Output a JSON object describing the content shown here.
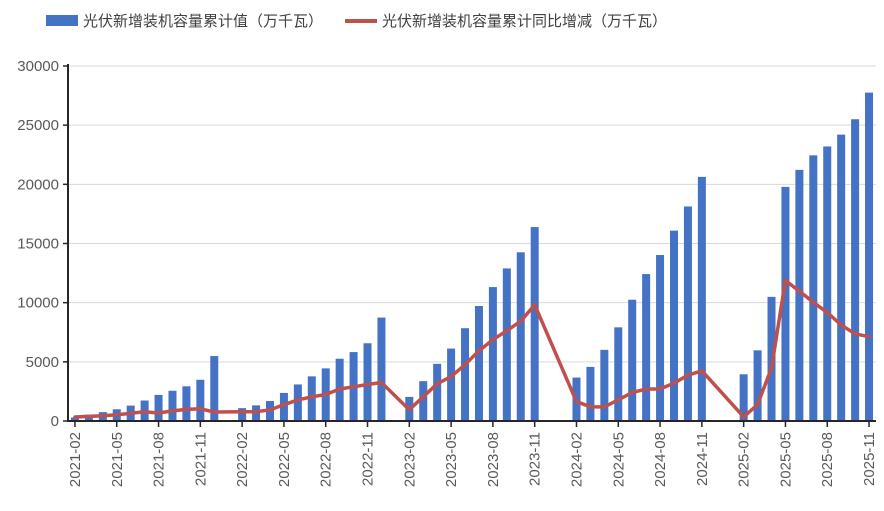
{
  "legend": {
    "items": [
      {
        "label": "光伏新增装机容量累计值（万千瓦）",
        "marker": "bar-swatch",
        "color": "#4472C4"
      },
      {
        "label": "光伏新增装机容量累计同比增减（万千瓦）",
        "marker": "line-swatch",
        "color": "#C0504D"
      }
    ]
  },
  "colors": {
    "bar": "#4472C4",
    "line": "#C0504D",
    "grid": "#D9D9D9",
    "axis": "#262626",
    "tick_label": "#595959"
  },
  "y_axis": {
    "tick_labels": [
      "0",
      "5000",
      "10000",
      "15000",
      "20000",
      "25000",
      "30000"
    ]
  },
  "x_axis": {
    "tick_labels": [
      "2021-02",
      "2021-05",
      "2021-08",
      "2021-11",
      "2022-02",
      "2022-05",
      "2022-08",
      "2022-11",
      "2023-02",
      "2023-05",
      "2023-08",
      "2023-11",
      "2024-02",
      "2024-05",
      "2024-08",
      "2024-11",
      "2025-02",
      "2025-05",
      "2025-08",
      "2025-11"
    ],
    "label_every": 3
  },
  "chart_data": {
    "type": "combo",
    "title": "",
    "xlabel": "",
    "ylabel": "",
    "ylim": [
      0,
      30000
    ],
    "ytick_step": 5000,
    "grid": true,
    "legend_position": "top",
    "categories": [
      "2021-02",
      "2021-03",
      "2021-04",
      "2021-05",
      "2021-06",
      "2021-07",
      "2021-08",
      "2021-09",
      "2021-10",
      "2021-11",
      "2021-12",
      "2022-01",
      "2022-02",
      "2022-03",
      "2022-04",
      "2022-05",
      "2022-06",
      "2022-07",
      "2022-08",
      "2022-09",
      "2022-10",
      "2022-11",
      "2022-12",
      "2023-01",
      "2023-02",
      "2023-03",
      "2023-04",
      "2023-05",
      "2023-06",
      "2023-07",
      "2023-08",
      "2023-09",
      "2023-10",
      "2023-11",
      "2023-12",
      "2024-01",
      "2024-02",
      "2024-03",
      "2024-04",
      "2024-05",
      "2024-06",
      "2024-07",
      "2024-08",
      "2024-09",
      "2024-10",
      "2024-11",
      "2024-12",
      "2025-01",
      "2025-02",
      "2025-03",
      "2025-04",
      "2025-05",
      "2025-06",
      "2025-07",
      "2025-08",
      "2025-09",
      "2025-10",
      "2025-11"
    ],
    "series": [
      {
        "name": "光伏新增装机容量累计值（万千瓦）",
        "type": "bar",
        "color": "#4472C4",
        "values": [
          300,
          533,
          750,
          990,
          1301,
          1730,
          2205,
          2556,
          2931,
          3483,
          5488,
          null,
          1086,
          1321,
          1688,
          2371,
          3088,
          3773,
          4447,
          5260,
          5824,
          6571,
          8741,
          null,
          2037,
          3366,
          4831,
          6121,
          7842,
          9716,
          11316,
          12894,
          14256,
          16388,
          null,
          null,
          3672,
          4574,
          6011,
          7915,
          10248,
          12416,
          14026,
          16088,
          18130,
          20630,
          null,
          null,
          3947,
          5971,
          10493,
          19785,
          21221,
          22450,
          23200,
          24200,
          25500,
          27750
        ]
      },
      {
        "name": "光伏新增装机容量累计同比增减（万千瓦）",
        "type": "line",
        "color": "#C0504D",
        "values": [
          340,
          390,
          450,
          520,
          650,
          780,
          680,
          850,
          980,
          1030,
          760,
          null,
          786,
          788,
          938,
          1381,
          1787,
          2043,
          2242,
          2704,
          2893,
          3088,
          3253,
          null,
          951,
          2045,
          3143,
          3750,
          4754,
          5943,
          6869,
          7634,
          8432,
          9817,
          null,
          null,
          1635,
          1208,
          1180,
          1794,
          2406,
          2700,
          2710,
          3194,
          3874,
          4242,
          null,
          null,
          350,
          1397,
          4482,
          11870,
          10973,
          10034,
          9174,
          8112,
          7370,
          7120
        ]
      }
    ]
  }
}
